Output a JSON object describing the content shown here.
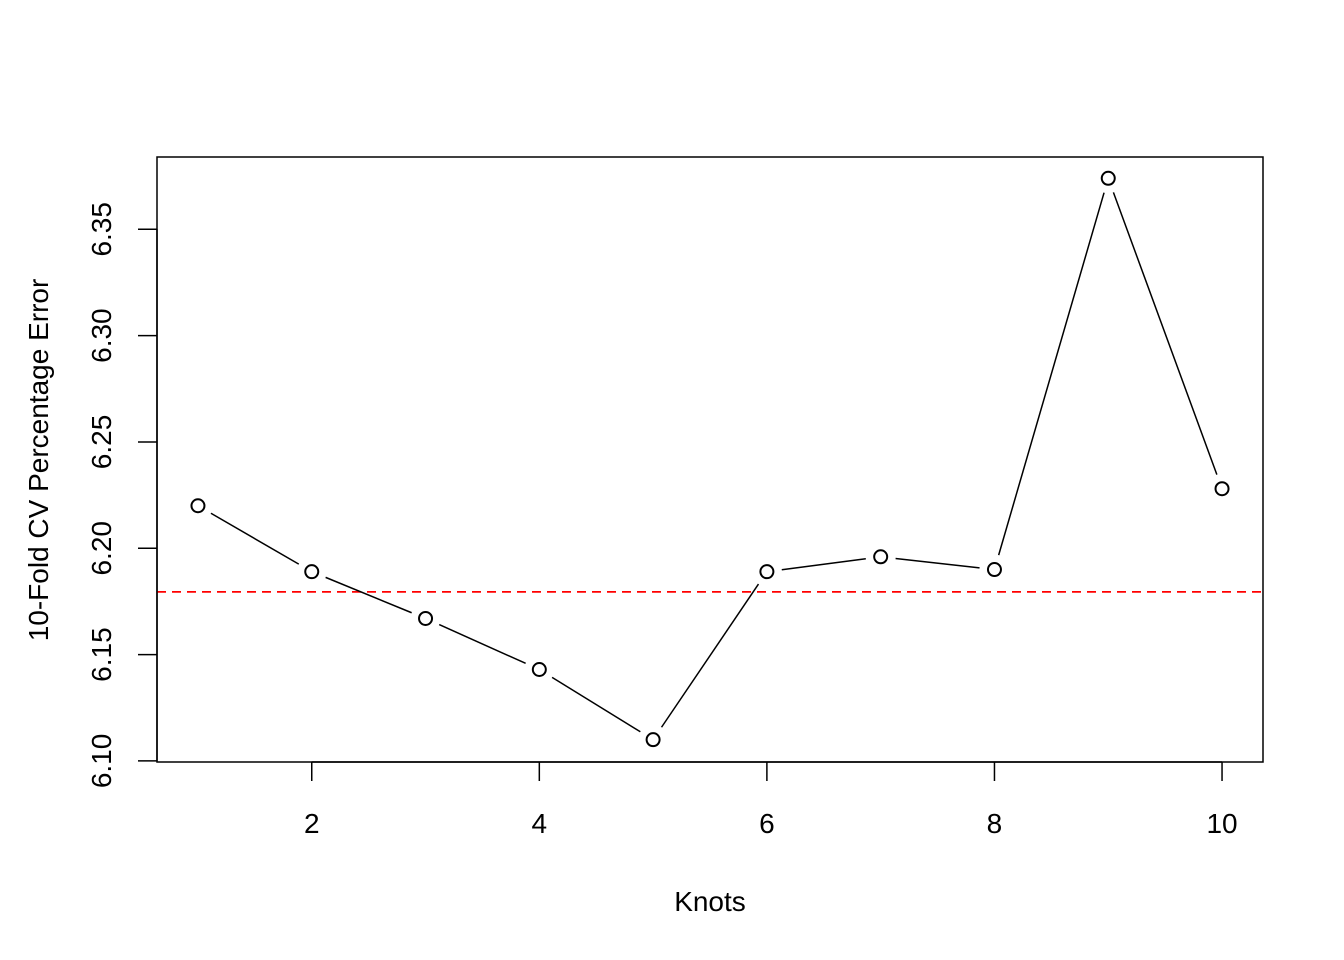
{
  "chart_data": {
    "type": "line",
    "title": "",
    "xlabel": "Knots",
    "ylabel": "10-Fold CV Percentage Error",
    "xlim": [
      0.64,
      10.36
    ],
    "ylim": [
      6.0995,
      6.384
    ],
    "x_ticks": [
      2,
      4,
      6,
      8,
      10
    ],
    "x_tick_labels": [
      "2",
      "4",
      "6",
      "8",
      "10"
    ],
    "y_ticks": [
      6.1,
      6.15,
      6.2,
      6.25,
      6.3,
      6.35
    ],
    "y_tick_labels": [
      "6.10",
      "6.15",
      "6.20",
      "6.25",
      "6.30",
      "6.35"
    ],
    "grid": false,
    "series": [
      {
        "x": [
          1,
          2,
          3,
          4,
          5,
          6,
          7,
          8,
          9,
          10
        ],
        "values": [
          6.22,
          6.189,
          6.167,
          6.143,
          6.11,
          6.189,
          6.196,
          6.19,
          6.374,
          6.228
        ],
        "color": "#000000",
        "marker": "open-circle",
        "line": "solid"
      }
    ],
    "reference_lines": [
      {
        "orientation": "horizontal",
        "y": 6.1795,
        "color": "#ff0000",
        "style": "dashed"
      }
    ]
  }
}
